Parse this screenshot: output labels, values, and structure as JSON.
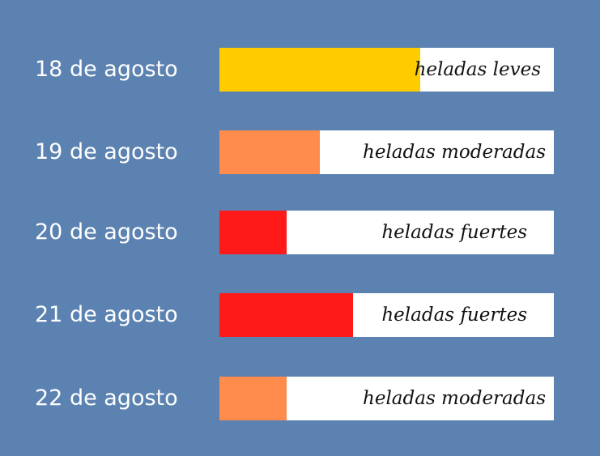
{
  "colors": {
    "background": "#5b82b0",
    "track": "#ffffff",
    "leves": "#ffcc00",
    "moderadas": "#ff8c4d",
    "fuertes": "#ff1a1a"
  },
  "chart_data": {
    "type": "bar",
    "orientation": "horizontal",
    "categories": [
      "18 de agosto",
      "19 de agosto",
      "20 de agosto",
      "21 de agosto",
      "22 de agosto"
    ],
    "values": [
      0.6,
      0.3,
      0.2,
      0.4,
      0.2
    ],
    "labels": [
      "heladas leves",
      "heladas moderadas",
      "heladas fuertes",
      "heladas fuertes",
      "heladas moderadas"
    ],
    "bar_colors": [
      "#ffcc00",
      "#ff8c4d",
      "#ff1a1a",
      "#ff1a1a",
      "#ff8c4d"
    ],
    "xlim": [
      0,
      1
    ],
    "title": "",
    "xlabel": "",
    "ylabel": ""
  }
}
